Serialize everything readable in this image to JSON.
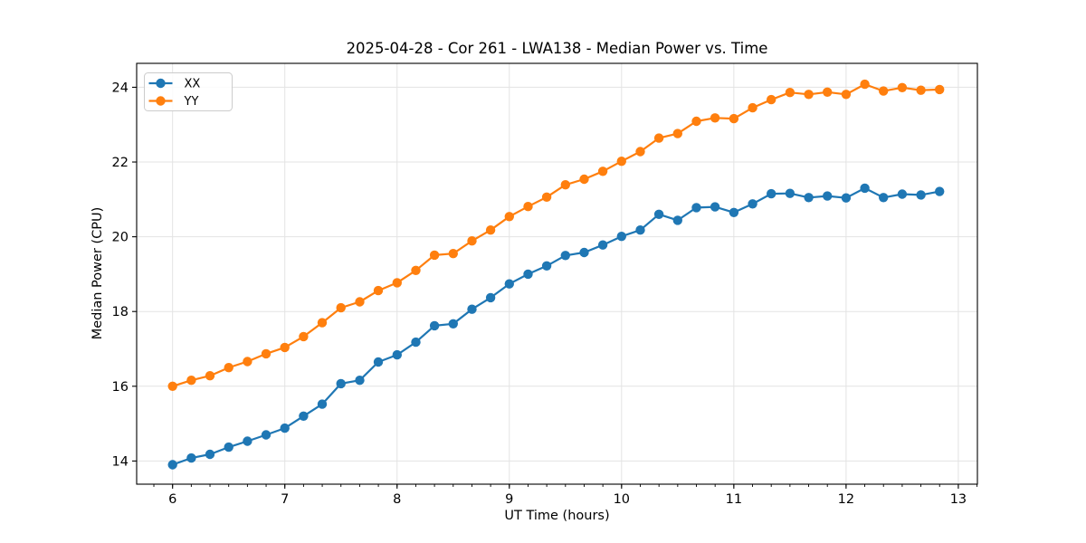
{
  "chart_data": {
    "type": "line",
    "title": "2025-04-28 - Cor 261 - LWA138 - Median Power vs. Time",
    "xlabel": "UT Time (hours)",
    "ylabel": "Median Power (CPU)",
    "xlim": [
      5.68,
      13.17
    ],
    "ylim": [
      13.38,
      24.64
    ],
    "xticks": [
      6,
      7,
      8,
      9,
      10,
      11,
      12,
      13
    ],
    "yticks": [
      14,
      16,
      18,
      20,
      22,
      24
    ],
    "x_minor_step": 0.166667,
    "grid": true,
    "legend_position": "upper left",
    "x": [
      6.0,
      6.167,
      6.333,
      6.5,
      6.667,
      6.833,
      7.0,
      7.167,
      7.333,
      7.5,
      7.667,
      7.833,
      8.0,
      8.167,
      8.333,
      8.5,
      8.667,
      8.833,
      9.0,
      9.167,
      9.333,
      9.5,
      9.667,
      9.833,
      10.0,
      10.167,
      10.333,
      10.5,
      10.667,
      10.833,
      11.0,
      11.167,
      11.333,
      11.5,
      11.667,
      11.833,
      12.0,
      12.167,
      12.333,
      12.5,
      12.667,
      12.833
    ],
    "series": [
      {
        "name": "XX",
        "color": "#1f77b4",
        "values": [
          13.9,
          14.08,
          14.18,
          14.37,
          14.53,
          14.7,
          14.88,
          15.2,
          15.52,
          16.07,
          16.16,
          16.65,
          16.84,
          17.18,
          17.62,
          17.67,
          18.06,
          18.37,
          18.74,
          19.0,
          19.22,
          19.5,
          19.58,
          19.78,
          20.01,
          20.18,
          20.6,
          20.44,
          20.78,
          20.8,
          20.65,
          20.88,
          21.15,
          21.16,
          21.05,
          21.09,
          21.04,
          21.3,
          21.05,
          21.14,
          21.12,
          21.21
        ]
      },
      {
        "name": "YY",
        "color": "#ff7f0e",
        "values": [
          16.0,
          16.16,
          16.28,
          16.5,
          16.66,
          16.87,
          17.04,
          17.33,
          17.7,
          18.1,
          18.26,
          18.56,
          18.77,
          19.1,
          19.51,
          19.55,
          19.89,
          20.18,
          20.54,
          20.81,
          21.06,
          21.39,
          21.54,
          21.75,
          22.02,
          22.28,
          22.64,
          22.76,
          23.09,
          23.18,
          23.16,
          23.45,
          23.67,
          23.86,
          23.81,
          23.87,
          23.81,
          24.08,
          23.9,
          23.99,
          23.92,
          23.94
        ]
      }
    ]
  },
  "colors": {
    "grid": "#e3e3e3",
    "spine": "#000000",
    "text": "#000000",
    "legend_border": "#cccccc",
    "legend_face": "#ffffff",
    "background": "#ffffff"
  }
}
